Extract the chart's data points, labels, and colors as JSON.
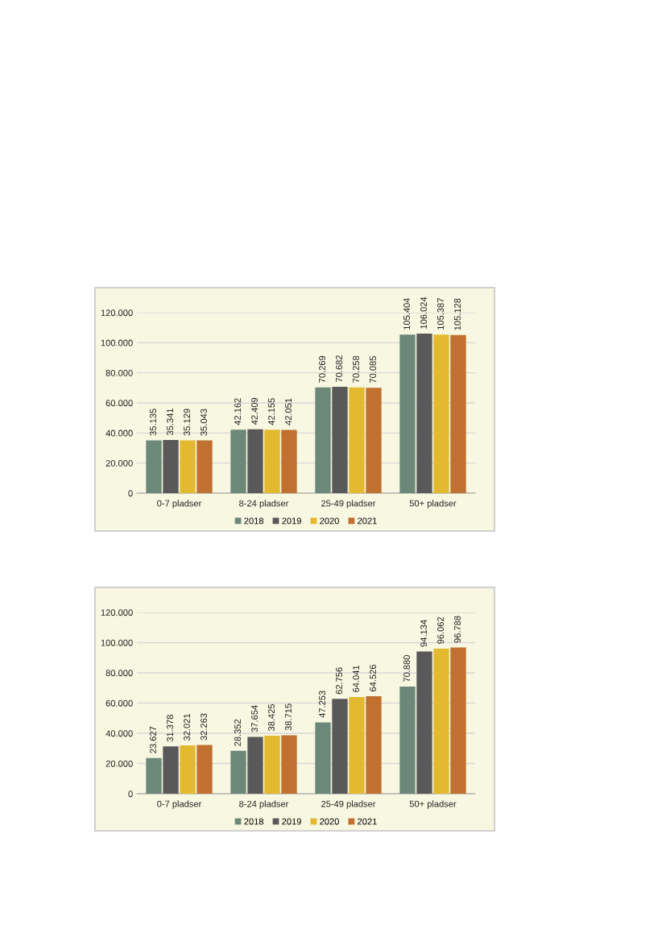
{
  "chart_data": [
    {
      "type": "bar",
      "categories": [
        "0-7 pladser",
        "8-24 pladser",
        "25-49 pladser",
        "50+ pladser"
      ],
      "series": [
        {
          "name": "2018",
          "color": "#6b8878",
          "values": [
            35135,
            42162,
            70269,
            105404
          ],
          "value_labels": [
            "35.135",
            "42.162",
            "70.269",
            "105.404"
          ]
        },
        {
          "name": "2019",
          "color": "#595959",
          "values": [
            35341,
            42409,
            70682,
            106024
          ],
          "value_labels": [
            "35.341",
            "42.409",
            "70.682",
            "106.024"
          ]
        },
        {
          "name": "2020",
          "color": "#e3b92f",
          "values": [
            35129,
            42155,
            70258,
            105387
          ],
          "value_labels": [
            "35.129",
            "42.155",
            "70.258",
            "105.387"
          ]
        },
        {
          "name": "2021",
          "color": "#c0702f",
          "values": [
            35043,
            42051,
            70085,
            105128
          ],
          "value_labels": [
            "35.043",
            "42.051",
            "70.085",
            "105.128"
          ]
        }
      ],
      "ylim": [
        0,
        120000
      ],
      "yticks": [
        0,
        {
          "value": 20000,
          "label": "20.000"
        },
        {
          "value": 40000,
          "label": "40.000"
        },
        {
          "value": 60000,
          "label": "60.000"
        },
        {
          "value": 80000,
          "label": "80.000"
        },
        {
          "value": 100000,
          "label": "100.000"
        },
        {
          "value": 120000,
          "label": "120.000"
        }
      ],
      "grid": "y",
      "legend": "bottom"
    },
    {
      "type": "bar",
      "categories": [
        "0-7 pladser",
        "8-24 pladser",
        "25-49 pladser",
        "50+ pladser"
      ],
      "series": [
        {
          "name": "2018",
          "color": "#6b8878",
          "values": [
            23627,
            28352,
            47253,
            70880
          ],
          "value_labels": [
            "23.627",
            "28.352",
            "47.253",
            "70.880"
          ]
        },
        {
          "name": "2019",
          "color": "#595959",
          "values": [
            31378,
            37654,
            62756,
            94134
          ],
          "value_labels": [
            "31.378",
            "37.654",
            "62.756",
            "94.134"
          ]
        },
        {
          "name": "2020",
          "color": "#e3b92f",
          "values": [
            32021,
            38425,
            64041,
            96062
          ],
          "value_labels": [
            "32.021",
            "38.425",
            "64.041",
            "96.062"
          ]
        },
        {
          "name": "2021",
          "color": "#c0702f",
          "values": [
            32263,
            38715,
            64526,
            96788
          ],
          "value_labels": [
            "32.263",
            "38.715",
            "64.526",
            "96.788"
          ]
        }
      ],
      "ylim": [
        0,
        120000
      ],
      "yticks": [
        0,
        {
          "value": 20000,
          "label": "20.000"
        },
        {
          "value": 40000,
          "label": "40.000"
        },
        {
          "value": 60000,
          "label": "60.000"
        },
        {
          "value": 80000,
          "label": "80.000"
        },
        {
          "value": 100000,
          "label": "100.000"
        },
        {
          "value": 120000,
          "label": "120.000"
        }
      ],
      "grid": "y",
      "legend": "bottom"
    }
  ]
}
